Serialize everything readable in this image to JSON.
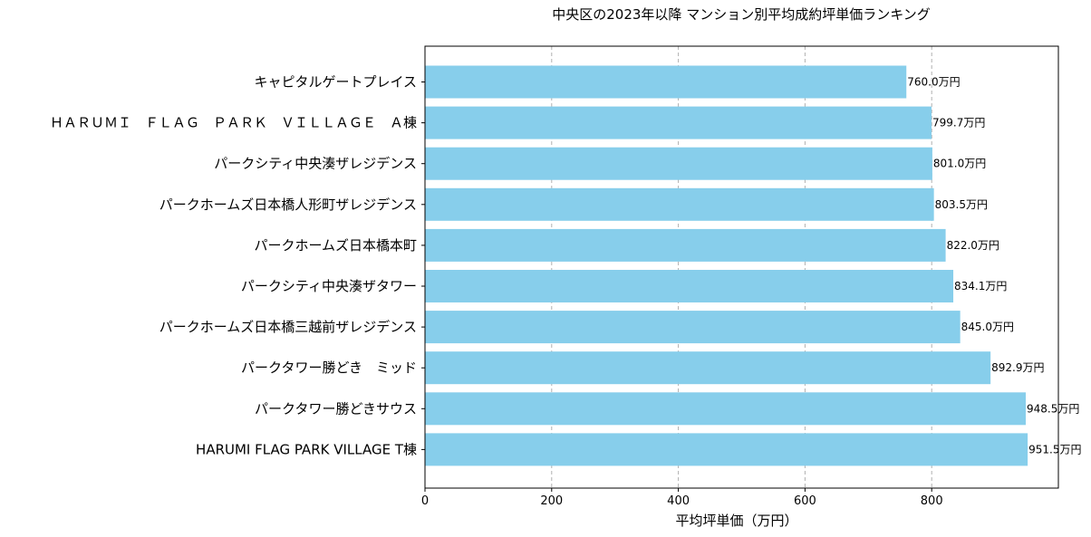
{
  "chart_data": {
    "type": "bar",
    "orientation": "horizontal",
    "title": "中央区の2023年以降 マンション別平均成約坪単価ランキング",
    "xlabel": "平均坪単価（万円）",
    "ylabel": "",
    "xlim": [
      0,
      1000
    ],
    "xticks": [
      0,
      200,
      400,
      600,
      800
    ],
    "grid": "x-dashed",
    "bar_color": "#87CEEB",
    "value_suffix": "万円",
    "categories": [
      "キャピタルゲートプレイス",
      "ＨＡＲＵＭＩ　ＦＬＡＧ　ＰＡＲＫ　ＶＩＬＬＡＧＥ　Ａ棟",
      "パークシティ中央湊ザレジデンス",
      "パークホームズ日本橋人形町ザレジデンス",
      "パークホームズ日本橋本町",
      "パークシティ中央湊ザタワー",
      "パークホームズ日本橋三越前ザレジデンス",
      "パークタワー勝どき　ミッド",
      "パークタワー勝どきサウス",
      "HARUMI FLAG PARK VILLAGE T棟"
    ],
    "values": [
      760.0,
      799.7,
      801.0,
      803.5,
      822.0,
      834.1,
      845.0,
      892.9,
      948.5,
      951.5
    ],
    "data_labels": [
      "760.0万円",
      "799.7万円",
      "801.0万円",
      "803.5万円",
      "822.0万円",
      "834.1万円",
      "845.0万円",
      "892.9万円",
      "948.5万円",
      "951.5万円"
    ]
  }
}
